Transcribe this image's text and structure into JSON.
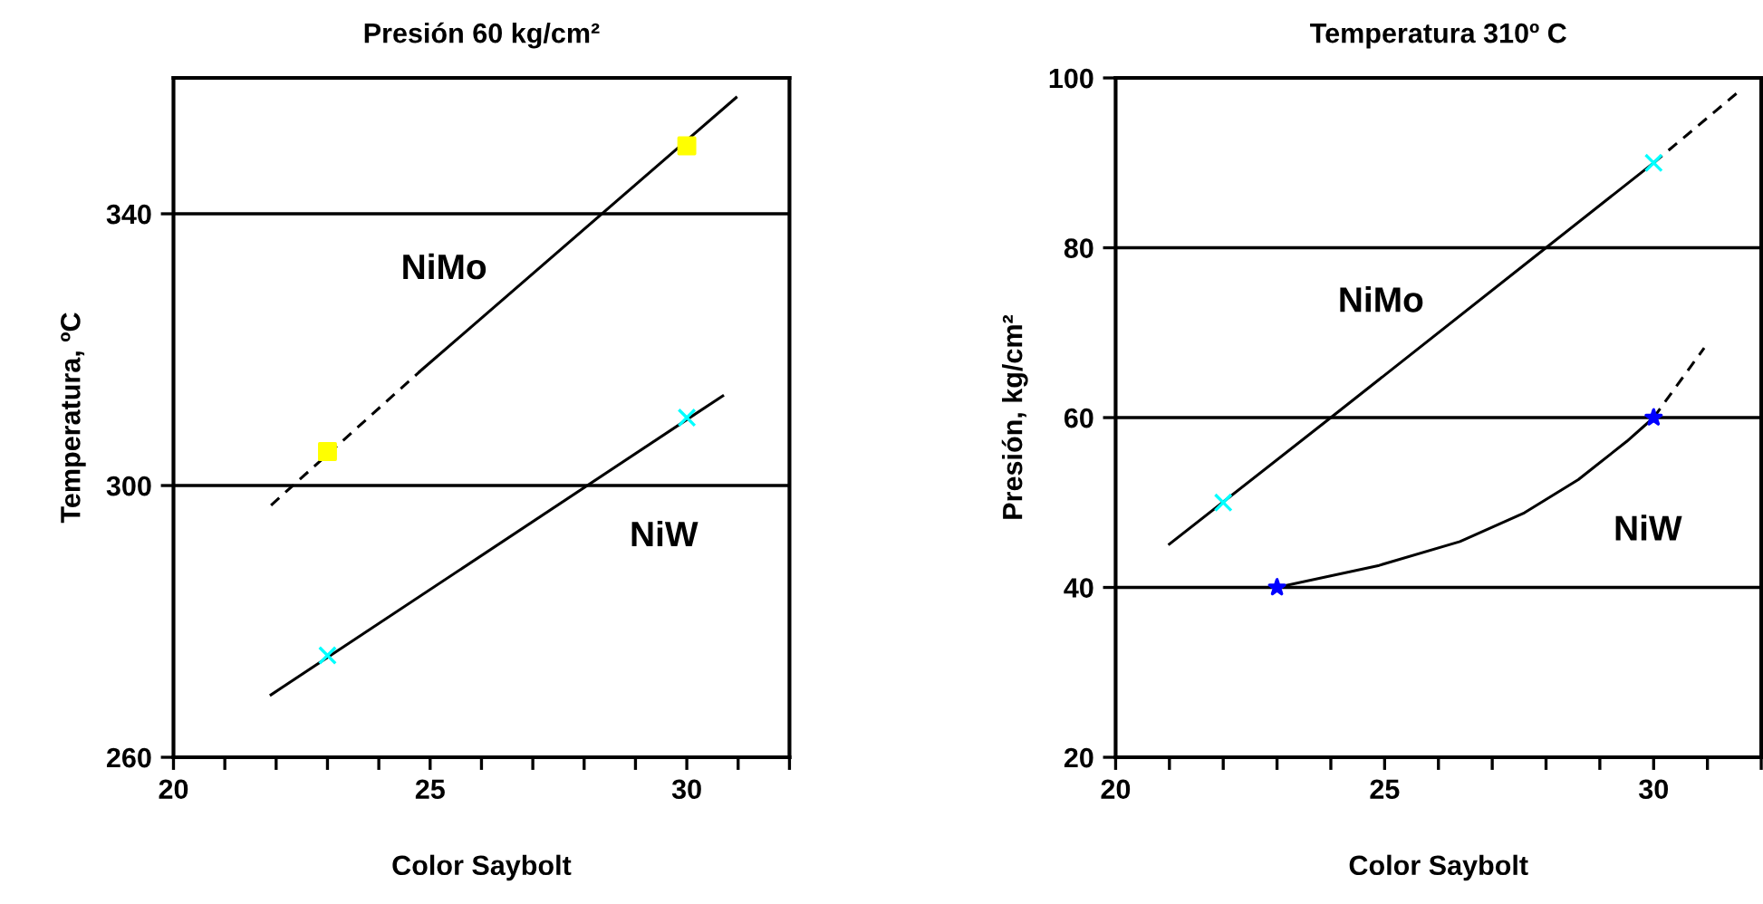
{
  "chart_data": [
    {
      "type": "line",
      "title": "Presión 60 kg/cm²",
      "xlabel": "Color Saybolt",
      "ylabel": "Temperatura, ºC",
      "xlim": [
        20,
        32
      ],
      "ylim": [
        260,
        360
      ],
      "xticks": [
        20,
        {
          "value": 21,
          "label": null
        },
        {
          "value": 22,
          "label": null
        },
        {
          "value": 23,
          "label": null
        },
        {
          "value": 24,
          "label": null
        },
        25,
        {
          "value": 26,
          "label": null
        },
        {
          "value": 27,
          "label": null
        },
        {
          "value": 28,
          "label": null
        },
        {
          "value": 29,
          "label": null
        },
        30,
        {
          "value": 31,
          "label": null
        },
        {
          "value": 32,
          "label": null
        }
      ],
      "yticks": [
        260,
        300,
        340
      ],
      "grid": "y",
      "legend": false,
      "series": [
        {
          "line_style": "dashed",
          "color": "#000000",
          "x": [
            21.9,
            24.8
          ],
          "values": [
            297.1,
            316.8
          ]
        },
        {
          "line_style": "solid",
          "color": "#000000",
          "x": [
            24.8,
            30.96
          ],
          "values": [
            316.8,
            357.1
          ]
        },
        {
          "line_style": "solid",
          "color": "#000000",
          "x": [
            21.9,
            30.7
          ],
          "values": [
            269.2,
            313.2
          ]
        },
        {
          "type": "scatter",
          "marker": "square",
          "color": "#ffff00",
          "x": [
            23,
            30
          ],
          "values": [
            305,
            350
          ]
        },
        {
          "type": "scatter",
          "marker": "cross",
          "color": "#00ffff",
          "x": [
            23,
            30
          ],
          "values": [
            275,
            310
          ]
        }
      ],
      "annotations": [
        {
          "text": "NiMo",
          "x": 26.6,
          "y": 328.6
        },
        {
          "text": "NiW",
          "x": 28.2,
          "y": 300
        }
      ]
    },
    {
      "type": "line",
      "title": "Temperatura 310º C",
      "xlabel": "Color Saybolt",
      "ylabel": "Presión, kg/cm²",
      "xlim": [
        20,
        32
      ],
      "ylim": [
        20,
        100
      ],
      "xticks": [
        20,
        {
          "value": 21,
          "label": null
        },
        {
          "value": 22,
          "label": null
        },
        {
          "value": 23,
          "label": null
        },
        {
          "value": 24,
          "label": null
        },
        25,
        {
          "value": 26,
          "label": null
        },
        {
          "value": 27,
          "label": null
        },
        {
          "value": 28,
          "label": null
        },
        {
          "value": 29,
          "label": null
        },
        30,
        {
          "value": 31,
          "label": null
        },
        {
          "value": 32,
          "label": null
        }
      ],
      "yticks": [
        20,
        40,
        60,
        80,
        100
      ],
      "grid": "y",
      "legend": false,
      "series": [
        {
          "line_style": "solid",
          "color": "#000000",
          "x": [
            21.0,
            24.0,
            28.0,
            30.0
          ],
          "values": [
            45.1,
            60,
            80,
            90
          ]
        },
        {
          "line_style": "dashed",
          "color": "#000000",
          "x": [
            30.0,
            31.64
          ],
          "values": [
            90,
            98.7
          ]
        },
        {
          "line_style": "solid",
          "color": "#000000",
          "x": [
            23,
            24.9,
            26.4,
            27.6,
            28.6,
            29.5,
            30
          ],
          "values": [
            40,
            42.6,
            45.4,
            48.8,
            52.7,
            57.2,
            60
          ]
        },
        {
          "line_style": "dashed",
          "color": "#000000",
          "x": [
            30,
            30.94
          ],
          "values": [
            60,
            68.2
          ]
        },
        {
          "type": "scatter",
          "marker": "cross",
          "color": "#00ffff",
          "x": [
            22,
            30
          ],
          "values": [
            50,
            90
          ]
        },
        {
          "type": "scatter",
          "marker": "star",
          "color": "#0000ff",
          "x": [
            23,
            30
          ],
          "values": [
            40,
            60
          ]
        }
      ],
      "annotations": [
        {
          "text": "NiMo",
          "x": 26.2,
          "y": 71
        },
        {
          "text": "NiW",
          "x": 28.6,
          "y": 52.7
        }
      ]
    }
  ]
}
